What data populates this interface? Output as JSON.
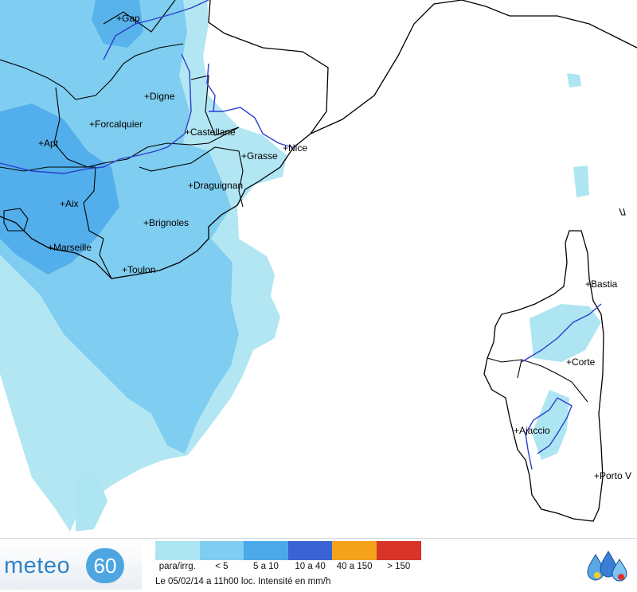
{
  "map": {
    "cities": [
      {
        "name": "Gap"
      },
      {
        "name": "Digne"
      },
      {
        "name": "Forcalquier"
      },
      {
        "name": "Castellane"
      },
      {
        "name": "Apt"
      },
      {
        "name": "Grasse"
      },
      {
        "name": "Nice"
      },
      {
        "name": "Draguignan"
      },
      {
        "name": "Aix"
      },
      {
        "name": "Brignoles"
      },
      {
        "name": "Marseille"
      },
      {
        "name": "Toulon"
      },
      {
        "name": "Bastia"
      },
      {
        "name": "Corte"
      },
      {
        "name": "Ajaccio"
      },
      {
        "name": "Porto V"
      }
    ],
    "colors": {
      "para_irreg": "#aee5f2",
      "lt5": "#7fcdf0",
      "5_10": "#4ba9ea",
      "10_40": "#3a63d6",
      "40_150": "#f5a21b",
      "gt150": "#d9342a"
    }
  },
  "logo": {
    "word": "meteo",
    "number": "60"
  },
  "legend": {
    "labels": [
      "para/irrg.",
      "< 5",
      "5 a 10",
      "10 a 40",
      "40 a 150",
      "> 150"
    ],
    "caption": "Le 05/02/14 a 11h00 loc. Intensité en mm/h"
  }
}
